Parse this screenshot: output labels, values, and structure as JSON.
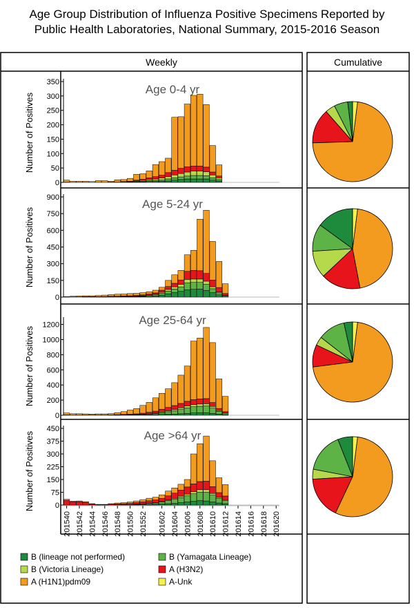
{
  "title": {
    "line1": "Age Group Distribution of Influenza Positive Specimens Reported by",
    "line2": "Public Health Laboratories, National Summary, 2015-2016 Season"
  },
  "headers": {
    "weekly": "Weekly",
    "cumulative": "Cumulative"
  },
  "chart_data": {
    "type": "bar",
    "stacked": true,
    "x_tick_labels": [
      "201540",
      "201542",
      "201544",
      "201546",
      "201548",
      "201550",
      "201552",
      "201602",
      "201604",
      "201606",
      "201608",
      "201610",
      "201612",
      "201614",
      "201616",
      "201618",
      "201620"
    ],
    "weeks": [
      "201540",
      "201541",
      "201542",
      "201543",
      "201544",
      "201545",
      "201546",
      "201547",
      "201548",
      "201549",
      "201550",
      "201551",
      "201552",
      "201553",
      "201601",
      "201602",
      "201603",
      "201604",
      "201605",
      "201606",
      "201607",
      "201608",
      "201609",
      "201610",
      "201611",
      "201612",
      "201613",
      "201614",
      "201615",
      "201616",
      "201617",
      "201618",
      "201619",
      "201620"
    ],
    "series": [
      {
        "name": "B (lineage not performed)",
        "color": "#1E8A3C"
      },
      {
        "name": "B (Yamagata Lineage)",
        "color": "#5DB346"
      },
      {
        "name": "B (Victoria Lineage)",
        "color": "#B5D94A"
      },
      {
        "name": "A (H3N2)",
        "color": "#E8141B"
      },
      {
        "name": "A (H1N1)pdm09",
        "color": "#F39B1E"
      },
      {
        "name": "A-Unk",
        "color": "#F5F04A"
      }
    ],
    "ylabel": "Number of Positives",
    "panels": [
      {
        "title": "Age 0-4 yr",
        "yticks": [
          0,
          50,
          100,
          150,
          200,
          250,
          300,
          350
        ],
        "ylim": [
          0,
          350
        ],
        "totals": [
          8,
          4,
          4,
          4,
          3,
          6,
          6,
          4,
          9,
          10,
          14,
          28,
          30,
          40,
          62,
          72,
          84,
          226,
          228,
          272,
          302,
          306,
          270,
          128,
          60
        ],
        "stacks": [
          [
            0,
            0,
            0,
            0,
            0,
            0,
            0,
            0,
            0,
            0,
            0,
            2,
            2,
            3,
            3,
            4,
            5,
            8,
            10,
            12,
            12,
            12,
            12,
            8,
            5
          ],
          [
            0,
            0,
            0,
            0,
            0,
            0,
            0,
            0,
            0,
            1,
            1,
            1,
            2,
            3,
            4,
            5,
            7,
            8,
            9,
            10,
            12,
            12,
            11,
            8,
            5
          ],
          [
            0,
            0,
            0,
            0,
            0,
            0,
            0,
            0,
            0,
            0,
            1,
            2,
            3,
            4,
            5,
            6,
            8,
            10,
            12,
            14,
            15,
            15,
            14,
            10,
            6
          ],
          [
            1,
            0,
            0,
            0,
            0,
            0,
            0,
            1,
            1,
            2,
            2,
            3,
            4,
            6,
            8,
            10,
            14,
            16,
            18,
            18,
            18,
            18,
            16,
            10,
            6
          ],
          [
            7,
            4,
            4,
            4,
            3,
            6,
            6,
            3,
            8,
            7,
            10,
            20,
            19,
            24,
            42,
            47,
            50,
            184,
            179,
            218,
            245,
            249,
            217,
            92,
            39
          ],
          [
            0,
            0,
            0,
            0,
            0,
            0,
            0,
            0,
            0,
            0,
            0,
            0,
            0,
            0,
            0,
            0,
            0,
            0,
            0,
            0,
            0,
            0,
            0,
            0,
            0
          ]
        ],
        "pie": [
          0.02,
          0.055,
          0.04,
          0.14,
          0.725,
          0.02
        ]
      },
      {
        "title": "Age 5-24 yr",
        "yticks": [
          0,
          150,
          300,
          450,
          600,
          750,
          900
        ],
        "ylim": [
          0,
          900
        ],
        "totals": [
          4,
          8,
          10,
          12,
          12,
          14,
          18,
          22,
          26,
          28,
          32,
          34,
          40,
          48,
          62,
          88,
          150,
          200,
          240,
          380,
          420,
          700,
          780,
          500,
          320,
          120
        ],
        "stacks": [
          [
            0,
            0,
            0,
            0,
            0,
            0,
            0,
            0,
            0,
            2,
            2,
            3,
            4,
            6,
            10,
            18,
            30,
            40,
            52,
            65,
            70,
            72,
            60,
            40,
            20,
            8
          ],
          [
            0,
            0,
            0,
            1,
            1,
            1,
            1,
            2,
            2,
            3,
            3,
            4,
            5,
            8,
            10,
            16,
            24,
            32,
            40,
            62,
            62,
            60,
            55,
            35,
            18,
            6
          ],
          [
            0,
            0,
            0,
            0,
            0,
            0,
            0,
            1,
            1,
            1,
            1,
            2,
            3,
            4,
            6,
            10,
            15,
            20,
            22,
            32,
            30,
            30,
            28,
            18,
            8,
            3
          ],
          [
            1,
            2,
            2,
            3,
            3,
            3,
            4,
            4,
            5,
            5,
            6,
            6,
            8,
            10,
            12,
            18,
            26,
            32,
            40,
            72,
            78,
            75,
            70,
            60,
            40,
            15
          ],
          [
            3,
            6,
            8,
            8,
            8,
            10,
            13,
            15,
            18,
            17,
            20,
            19,
            20,
            20,
            24,
            26,
            55,
            76,
            86,
            149,
            180,
            463,
            567,
            347,
            234,
            88
          ],
          [
            0,
            0,
            0,
            0,
            0,
            0,
            0,
            0,
            0,
            0,
            0,
            0,
            0,
            0,
            0,
            0,
            0,
            0,
            0,
            0,
            0,
            0,
            0,
            0,
            0,
            0
          ]
        ],
        "pie": [
          0.15,
          0.11,
          0.11,
          0.16,
          0.45,
          0.02
        ]
      },
      {
        "title": "Age 25-64 yr",
        "yticks": [
          0,
          200,
          400,
          600,
          800,
          1000,
          1200
        ],
        "ylim": [
          0,
          1260
        ],
        "totals": [
          30,
          20,
          20,
          18,
          16,
          18,
          18,
          22,
          34,
          48,
          68,
          88,
          130,
          170,
          230,
          290,
          350,
          430,
          530,
          650,
          980,
          1020,
          1160,
          960,
          480,
          250
        ],
        "stacks": [
          [
            0,
            0,
            0,
            0,
            0,
            0,
            0,
            0,
            1,
            2,
            2,
            3,
            4,
            6,
            8,
            12,
            14,
            16,
            20,
            24,
            30,
            32,
            32,
            24,
            14,
            8
          ],
          [
            0,
            0,
            0,
            0,
            0,
            0,
            0,
            1,
            2,
            2,
            3,
            4,
            6,
            10,
            14,
            22,
            32,
            42,
            56,
            72,
            82,
            86,
            90,
            70,
            36,
            20
          ],
          [
            0,
            0,
            0,
            0,
            0,
            0,
            0,
            0,
            1,
            1,
            2,
            2,
            3,
            4,
            6,
            10,
            14,
            18,
            22,
            26,
            28,
            30,
            30,
            22,
            12,
            6
          ],
          [
            5,
            2,
            2,
            3,
            3,
            3,
            3,
            3,
            4,
            6,
            8,
            10,
            14,
            20,
            26,
            36,
            44,
            52,
            58,
            62,
            66,
            68,
            68,
            52,
            28,
            14
          ],
          [
            25,
            18,
            18,
            15,
            13,
            15,
            15,
            18,
            26,
            37,
            53,
            69,
            103,
            130,
            176,
            210,
            246,
            302,
            374,
            466,
            774,
            804,
            940,
            792,
            390,
            202
          ],
          [
            0,
            0,
            0,
            0,
            0,
            0,
            0,
            0,
            0,
            0,
            0,
            0,
            0,
            0,
            0,
            0,
            0,
            0,
            0,
            0,
            0,
            0,
            0,
            0,
            0,
            0
          ]
        ],
        "pie": [
          0.035,
          0.11,
          0.035,
          0.09,
          0.71,
          0.02
        ]
      },
      {
        "title": "Age >64 yr",
        "yticks": [
          0,
          75,
          150,
          225,
          300,
          375,
          450
        ],
        "ylim": [
          0,
          450
        ],
        "totals": [
          34,
          22,
          24,
          20,
          8,
          4,
          4,
          8,
          12,
          14,
          18,
          24,
          32,
          40,
          46,
          60,
          82,
          100,
          122,
          150,
          300,
          360,
          405,
          260,
          160,
          120
        ],
        "stacks": [
          [
            0,
            0,
            0,
            0,
            0,
            0,
            0,
            0,
            0,
            1,
            1,
            2,
            2,
            3,
            4,
            6,
            8,
            10,
            14,
            18,
            22,
            26,
            24,
            18,
            12,
            8
          ],
          [
            0,
            0,
            0,
            0,
            0,
            0,
            0,
            0,
            1,
            1,
            1,
            2,
            4,
            6,
            8,
            12,
            18,
            24,
            30,
            36,
            44,
            50,
            52,
            40,
            26,
            18
          ],
          [
            0,
            0,
            0,
            0,
            0,
            0,
            0,
            0,
            0,
            0,
            0,
            1,
            1,
            2,
            2,
            3,
            4,
            6,
            8,
            10,
            12,
            14,
            14,
            10,
            7,
            5
          ],
          [
            28,
            20,
            20,
            16,
            6,
            2,
            2,
            5,
            6,
            6,
            8,
            10,
            12,
            14,
            16,
            18,
            24,
            30,
            36,
            42,
            46,
            48,
            50,
            40,
            28,
            22
          ],
          [
            6,
            2,
            4,
            4,
            2,
            2,
            2,
            3,
            5,
            6,
            8,
            9,
            13,
            15,
            16,
            21,
            28,
            30,
            34,
            44,
            176,
            222,
            265,
            152,
            87,
            67
          ],
          [
            0,
            0,
            0,
            0,
            0,
            0,
            0,
            0,
            0,
            0,
            0,
            0,
            0,
            0,
            0,
            0,
            0,
            0,
            0,
            0,
            0,
            0,
            0,
            0,
            0,
            0
          ]
        ],
        "pie": [
          0.06,
          0.16,
          0.04,
          0.17,
          0.55,
          0.02
        ]
      }
    ]
  }
}
